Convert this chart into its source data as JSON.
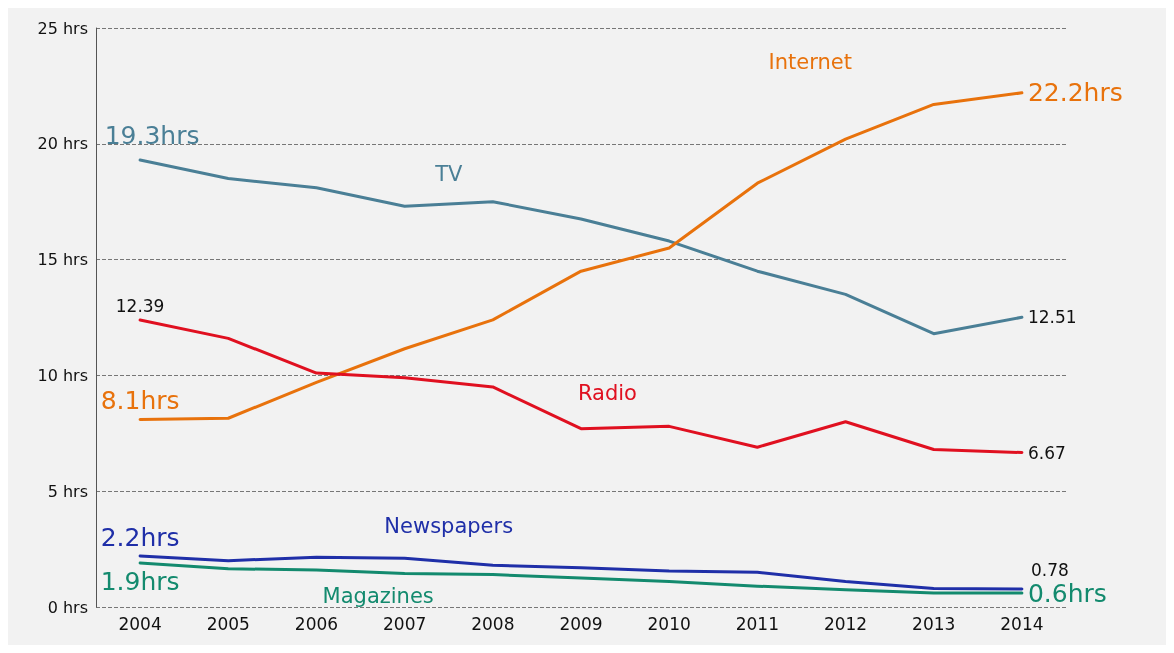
{
  "chart_data": {
    "type": "line",
    "categories": [
      "2004",
      "2005",
      "2006",
      "2007",
      "2008",
      "2009",
      "2010",
      "2011",
      "2012",
      "2013",
      "2014"
    ],
    "series": [
      {
        "name": "TV",
        "color": "#4a7f96",
        "values": [
          19.3,
          18.5,
          18.1,
          17.3,
          17.5,
          16.75,
          15.8,
          14.5,
          13.5,
          11.8,
          12.51
        ],
        "value_labels": [
          "19.3hrs",
          null,
          null,
          null,
          null,
          null,
          null,
          null,
          null,
          null,
          "12.51"
        ]
      },
      {
        "name": "Internet",
        "color": "#e8720c",
        "values": [
          8.1,
          8.15,
          9.7,
          11.15,
          12.4,
          14.5,
          15.5,
          18.3,
          20.2,
          21.7,
          22.2
        ],
        "value_labels": [
          "8.1hrs",
          null,
          null,
          null,
          null,
          null,
          null,
          null,
          null,
          null,
          "22.2hrs"
        ]
      },
      {
        "name": "Radio",
        "color": "#e01020",
        "values": [
          12.39,
          11.6,
          10.1,
          9.9,
          9.5,
          7.7,
          7.8,
          6.9,
          8.0,
          6.8,
          6.67
        ],
        "value_labels": [
          "12.39",
          null,
          null,
          null,
          null,
          null,
          null,
          null,
          null,
          null,
          "6.67"
        ]
      },
      {
        "name": "Newspapers",
        "color": "#1f2fa8",
        "values": [
          2.2,
          2.0,
          2.15,
          2.1,
          1.8,
          1.7,
          1.55,
          1.5,
          1.1,
          0.8,
          0.78
        ],
        "value_labels": [
          "2.2hrs",
          null,
          null,
          null,
          null,
          null,
          null,
          null,
          null,
          null,
          "0.78"
        ]
      },
      {
        "name": "Magazines",
        "color": "#138a6e",
        "values": [
          1.9,
          1.65,
          1.6,
          1.45,
          1.4,
          1.25,
          1.1,
          0.9,
          0.75,
          0.6,
          0.6
        ],
        "value_labels": [
          "1.9hrs",
          null,
          null,
          null,
          null,
          null,
          null,
          null,
          null,
          null,
          "0.6hrs"
        ]
      }
    ],
    "ylim": [
      0,
      25
    ],
    "yticks": [
      {
        "value": 0,
        "label": "0 hrs"
      },
      {
        "value": 5,
        "label": "5 hrs"
      },
      {
        "value": 10,
        "label": "10 hrs"
      },
      {
        "value": 15,
        "label": "15 hrs"
      },
      {
        "value": 20,
        "label": "20 hrs"
      },
      {
        "value": 25,
        "label": "25 hrs"
      }
    ],
    "grid": "y",
    "legend": false,
    "marker": "none",
    "line_style": "solid"
  }
}
